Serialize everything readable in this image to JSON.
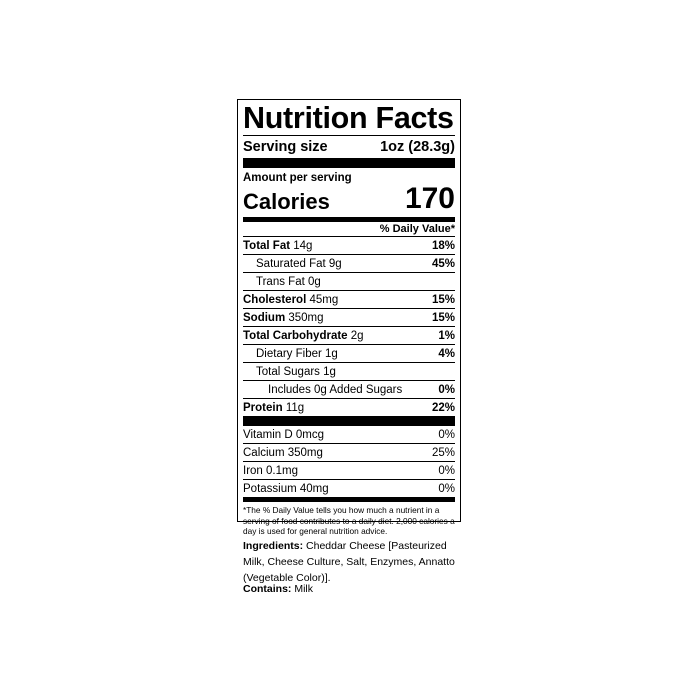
{
  "title": "Nutrition Facts",
  "serving": {
    "label": "Serving size",
    "value": "1oz (28.3g)"
  },
  "amount_per_serving": "Amount per serving",
  "calories": {
    "label": "Calories",
    "value": "170"
  },
  "daily_value_header": "% Daily Value*",
  "nutrients": [
    {
      "name": "Total Fat",
      "amount": "14g",
      "dv": "18%",
      "bold": true,
      "indent": 0
    },
    {
      "name": "Saturated Fat",
      "amount": "9g",
      "dv": "45%",
      "bold": false,
      "indent": 1
    },
    {
      "name": "Trans Fat",
      "amount": "0g",
      "dv": "",
      "bold": false,
      "indent": 1
    },
    {
      "name": "Cholesterol",
      "amount": "45mg",
      "dv": "15%",
      "bold": true,
      "indent": 0
    },
    {
      "name": "Sodium",
      "amount": "350mg",
      "dv": "15%",
      "bold": true,
      "indent": 0
    },
    {
      "name": "Total Carbohydrate",
      "amount": "2g",
      "dv": "1%",
      "bold": true,
      "indent": 0
    },
    {
      "name": "Dietary Fiber",
      "amount": "1g",
      "dv": "4%",
      "bold": false,
      "indent": 1
    },
    {
      "name": "Total Sugars",
      "amount": "1g",
      "dv": "",
      "bold": false,
      "indent": 1
    },
    {
      "name": "Includes 0g Added Sugars",
      "amount": "",
      "dv": "0%",
      "bold": false,
      "indent": 2
    },
    {
      "name": "Protein",
      "amount": "11g",
      "dv": "22%",
      "bold": true,
      "indent": 0
    }
  ],
  "vitamins": [
    {
      "name": "Vitamin D",
      "amount": "0mcg",
      "dv": "0%"
    },
    {
      "name": "Calcium",
      "amount": "350mg",
      "dv": "25%"
    },
    {
      "name": "Iron",
      "amount": "0.1mg",
      "dv": "0%"
    },
    {
      "name": "Potassium",
      "amount": "40mg",
      "dv": "0%"
    }
  ],
  "footnote": "*The % Daily Value tells you how much a nutrient in a serving of food contributes to a daily diet. 2,000 calories a day is used for general nutrition advice.",
  "ingredients": {
    "label": "Ingredients:",
    "text": "Cheddar Cheese [Pasteurized Milk, Cheese Culture, Salt, Enzymes, Annatto (Vegetable Color)]."
  },
  "contains": {
    "label": "Contains:",
    "text": "Milk"
  }
}
